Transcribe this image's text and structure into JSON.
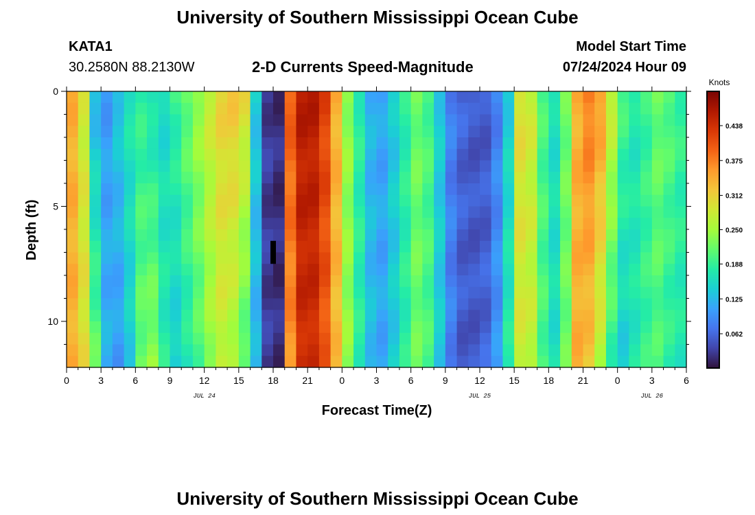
{
  "page": {
    "title": "University of Southern Mississippi Ocean Cube",
    "station_id": "KATA1",
    "station_coords": "30.2580N  88.2130W",
    "plot_title": "2-D Currents Speed-Magnitude",
    "model_start_label": "Model Start Time",
    "model_start_value": "07/24/2024 Hour 09",
    "footer_title": "University of Southern Mississippi Ocean Cube"
  },
  "chart_data": {
    "type": "heatmap",
    "title": "2-D Currents Speed-Magnitude",
    "xlabel": "Forecast Time(Z)",
    "ylabel": "Depth (ft)",
    "xlim": [
      0,
      54
    ],
    "ylim": [
      12,
      0
    ],
    "x_ticks": [
      {
        "hour": 0,
        "label": "0"
      },
      {
        "hour": 3,
        "label": "3"
      },
      {
        "hour": 6,
        "label": "6"
      },
      {
        "hour": 9,
        "label": "9"
      },
      {
        "hour": 12,
        "label": "12"
      },
      {
        "hour": 15,
        "label": "15"
      },
      {
        "hour": 18,
        "label": "18"
      },
      {
        "hour": 21,
        "label": "21"
      },
      {
        "hour": 24,
        "label": "0"
      },
      {
        "hour": 27,
        "label": "3"
      },
      {
        "hour": 30,
        "label": "6"
      },
      {
        "hour": 33,
        "label": "9"
      },
      {
        "hour": 36,
        "label": "12"
      },
      {
        "hour": 39,
        "label": "15"
      },
      {
        "hour": 42,
        "label": "18"
      },
      {
        "hour": 45,
        "label": "21"
      },
      {
        "hour": 48,
        "label": "0"
      },
      {
        "hour": 51,
        "label": "3"
      },
      {
        "hour": 54,
        "label": "6"
      }
    ],
    "date_labels": [
      {
        "hour": 12,
        "label": "JUL 24"
      },
      {
        "hour": 36,
        "label": "JUL 25"
      },
      {
        "hour": 51,
        "label": "JUL 26"
      }
    ],
    "y_ticks": [
      {
        "depth": 0,
        "label": "0"
      },
      {
        "depth": 5,
        "label": "5"
      },
      {
        "depth": 10,
        "label": "10"
      }
    ],
    "colorbar": {
      "units": "Knots",
      "min": 0.0,
      "max": 0.5,
      "ticks": [
        {
          "value": 0.062,
          "label": "0.062"
        },
        {
          "value": 0.125,
          "label": "0.125"
        },
        {
          "value": 0.188,
          "label": "0.188"
        },
        {
          "value": 0.25,
          "label": "0.250"
        },
        {
          "value": 0.312,
          "label": "0.312"
        },
        {
          "value": 0.375,
          "label": "0.375"
        },
        {
          "value": 0.438,
          "label": "0.438"
        }
      ],
      "colors": [
        "#30123b",
        "#4145ab",
        "#4675ed",
        "#39a2fc",
        "#1bcfd4",
        "#24eca6",
        "#61fc6c",
        "#a4fc3b",
        "#d1e834",
        "#f3c63a",
        "#fe9b2d",
        "#f36315",
        "#d93806",
        "#b11901",
        "#7a0403"
      ]
    },
    "depth_rows": [
      0.25,
      0.75,
      1.25,
      1.75,
      2.25,
      2.75,
      3.25,
      3.75,
      4.25,
      4.75,
      5.25,
      5.75,
      6.25,
      6.75,
      7.25,
      7.75,
      8.25,
      8.75,
      9.25,
      9.75,
      10.25,
      10.75,
      11.25,
      11.75
    ],
    "time_hours": [
      0,
      1,
      2,
      3,
      4,
      5,
      6,
      7,
      8,
      9,
      10,
      11,
      12,
      13,
      14,
      15,
      16,
      17,
      18,
      19,
      20,
      21,
      22,
      23,
      24,
      25,
      26,
      27,
      28,
      29,
      30,
      31,
      32,
      33,
      34,
      35,
      36,
      37,
      38,
      39,
      40,
      41,
      42,
      43,
      44,
      45,
      46,
      47,
      48,
      49,
      50,
      51,
      52,
      53,
      54
    ],
    "speed_surface": [
      0.34,
      0.28,
      0.12,
      0.1,
      0.14,
      0.17,
      0.18,
      0.16,
      0.15,
      0.19,
      0.22,
      0.25,
      0.28,
      0.31,
      0.32,
      0.3,
      0.14,
      0.03,
      0.02,
      0.4,
      0.46,
      0.46,
      0.42,
      0.34,
      0.24,
      0.18,
      0.12,
      0.11,
      0.14,
      0.18,
      0.22,
      0.2,
      0.14,
      0.08,
      0.06,
      0.05,
      0.05,
      0.08,
      0.14,
      0.3,
      0.28,
      0.2,
      0.16,
      0.22,
      0.34,
      0.38,
      0.36,
      0.28,
      0.2,
      0.17,
      0.19,
      0.22,
      0.21,
      0.19,
      0.18
    ],
    "speed_bottom": [
      0.34,
      0.3,
      0.22,
      0.12,
      0.1,
      0.14,
      0.22,
      0.24,
      0.18,
      0.14,
      0.17,
      0.2,
      0.24,
      0.27,
      0.25,
      0.2,
      0.12,
      0.03,
      0.02,
      0.36,
      0.44,
      0.44,
      0.4,
      0.33,
      0.24,
      0.18,
      0.13,
      0.11,
      0.14,
      0.18,
      0.22,
      0.2,
      0.14,
      0.08,
      0.05,
      0.05,
      0.06,
      0.1,
      0.18,
      0.28,
      0.27,
      0.2,
      0.16,
      0.22,
      0.34,
      0.32,
      0.26,
      0.18,
      0.14,
      0.17,
      0.19,
      0.2,
      0.18,
      0.17,
      0.17
    ],
    "missing_cells": [
      {
        "hour": 18,
        "depth_from": 6.5,
        "depth_to": 7.5
      }
    ]
  }
}
